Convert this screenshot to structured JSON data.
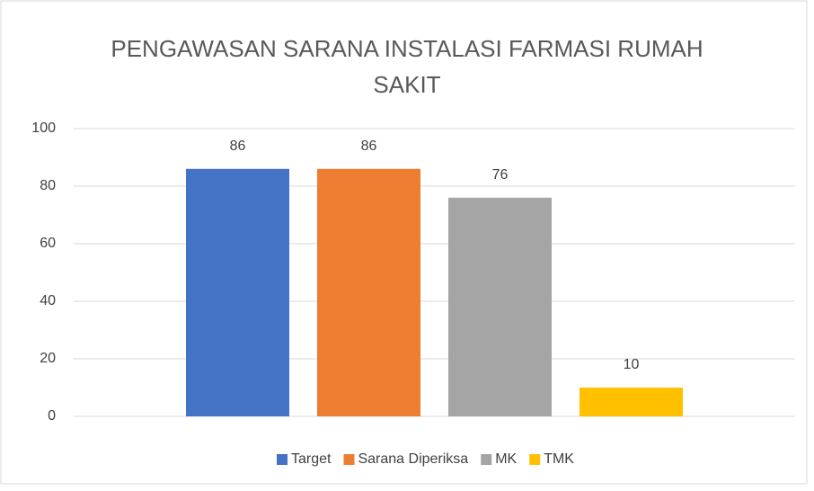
{
  "chart_data": {
    "type": "bar",
    "title": "PENGAWASAN SARANA INSTALASI FARMASI RUMAH SAKIT",
    "categories": [
      null
    ],
    "series": [
      {
        "name": "Target",
        "color": "#4472c4",
        "values": [
          86
        ]
      },
      {
        "name": "Sarana Diperiksa",
        "color": "#ed7d31",
        "values": [
          86
        ]
      },
      {
        "name": "MK",
        "color": "#a5a5a5",
        "values": [
          76
        ]
      },
      {
        "name": "TMK",
        "color": "#ffc000",
        "values": [
          10
        ]
      }
    ],
    "ylim": [
      0,
      100
    ],
    "yticks": [
      0,
      20,
      40,
      60,
      80,
      100
    ],
    "grid": true,
    "legend": "bottom"
  }
}
